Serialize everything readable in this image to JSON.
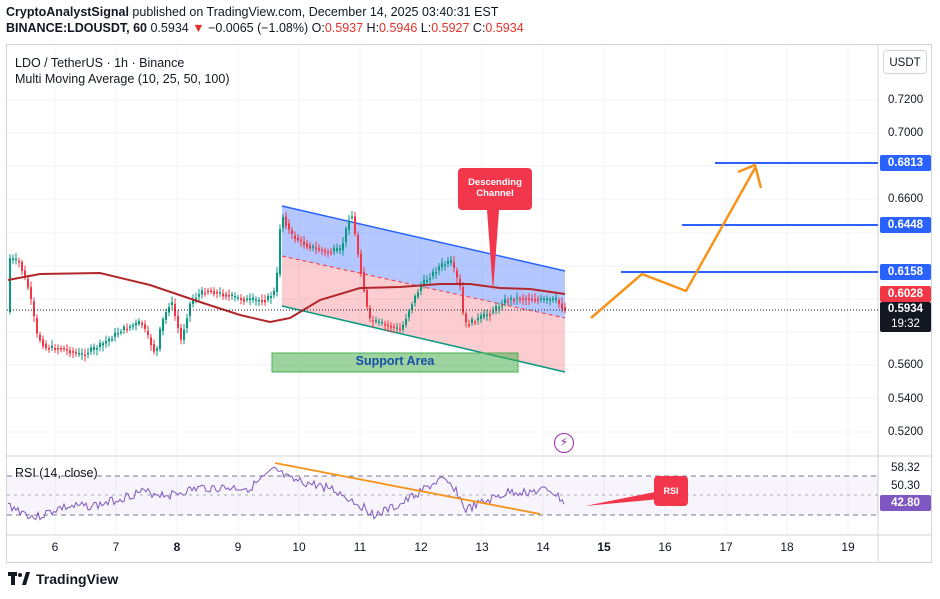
{
  "header": {
    "author": "CryptoAnalystSignal",
    "published": "published on TradingView.com, December 14, 2025 03:40:31 EST",
    "symbol": "BINANCE:LDOUSDT, 60",
    "last": "0.5934",
    "arrow": "▼",
    "change": "−0.0065 (−1.08%)",
    "o_label": "O:",
    "o": "0.5937",
    "h_label": "H:",
    "h": "0.5946",
    "l_label": "L:",
    "l": "0.5927",
    "c_label": "C:",
    "c": "0.5934"
  },
  "legend": {
    "title": "LDO / TetherUS · 1h · Binance",
    "indicator": "Multi Moving Average (10, 25, 50, 100)",
    "rsi": "RSI (14, close)"
  },
  "currency": "USDT",
  "price_ticks": [
    "0.7200",
    "0.7000",
    "0.6600",
    "0.5600",
    "0.5400",
    "0.5200"
  ],
  "badges": {
    "target3": "0.6813",
    "target2": "0.6448",
    "target1": "0.6158",
    "ma": "0.6028",
    "price": "0.5934",
    "countdown": "19:32"
  },
  "rsi_ticks": [
    "58.32",
    "50.30"
  ],
  "rsi_value": "42.80",
  "time_ticks": [
    "6",
    "7",
    "8",
    "9",
    "10",
    "11",
    "12",
    "13",
    "14",
    "15",
    "16",
    "17",
    "18",
    "19"
  ],
  "callouts": {
    "channel": "Descending\nChannel",
    "rsi": "RSI"
  },
  "support_label": "Support Area",
  "flash_glyph": "⚡",
  "footer_brand": "TradingView",
  "colors": {
    "up": "#089981",
    "down": "#f23645",
    "ma": "#b2272b",
    "channel_line": "#2962ff",
    "projection": "#f7931a",
    "rsi_line": "#7e57c2"
  }
}
